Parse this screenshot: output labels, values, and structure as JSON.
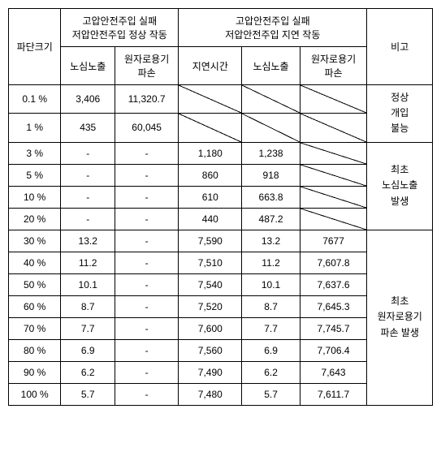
{
  "headers": {
    "col_size": "파단크기",
    "group1": "고압안전주입 실패\n저압안전주입 정상 작동",
    "group2": "고압안전주입 실패\n저압안전주입 지연 작동",
    "note": "비고",
    "sub_core": "노심노출",
    "sub_vessel": "원자로용기\n파손",
    "sub_delay": "지연시간"
  },
  "rows": [
    {
      "size": "0.1 %",
      "a": "3,406",
      "b": "11,320.7",
      "c": "diag",
      "d": "diag",
      "e": "diag"
    },
    {
      "size": "1 %",
      "a": "435",
      "b": "60,045",
      "c": "diag",
      "d": "diag",
      "e": "diag"
    },
    {
      "size": "3 %",
      "a": "-",
      "b": "-",
      "c": "1,180",
      "d": "1,238",
      "e": "diag"
    },
    {
      "size": "5 %",
      "a": "-",
      "b": "-",
      "c": "860",
      "d": "918",
      "e": "diag"
    },
    {
      "size": "10 %",
      "a": "-",
      "b": "-",
      "c": "610",
      "d": "663.8",
      "e": "diag"
    },
    {
      "size": "20 %",
      "a": "-",
      "b": "-",
      "c": "440",
      "d": "487.2",
      "e": "diag"
    },
    {
      "size": "30 %",
      "a": "13.2",
      "b": "-",
      "c": "7,590",
      "d": "13.2",
      "e": "7677"
    },
    {
      "size": "40 %",
      "a": "11.2",
      "b": "-",
      "c": "7,510",
      "d": "11.2",
      "e": "7,607.8"
    },
    {
      "size": "50 %",
      "a": "10.1",
      "b": "-",
      "c": "7,540",
      "d": "10.1",
      "e": "7,637.6"
    },
    {
      "size": "60 %",
      "a": "8.7",
      "b": "-",
      "c": "7,520",
      "d": "8.7",
      "e": "7,645.3"
    },
    {
      "size": "70 %",
      "a": "7.7",
      "b": "-",
      "c": "7,600",
      "d": "7.7",
      "e": "7,745.7"
    },
    {
      "size": "80 %",
      "a": "6.9",
      "b": "-",
      "c": "7,560",
      "d": "6.9",
      "e": "7,706.4"
    },
    {
      "size": "90 %",
      "a": "6.2",
      "b": "-",
      "c": "7,490",
      "d": "6.2",
      "e": "7,643"
    },
    {
      "size": "100 %",
      "a": "5.7",
      "b": "-",
      "c": "7,480",
      "d": "5.7",
      "e": "7,611.7"
    }
  ],
  "notes": {
    "n1": "정상\n개입\n불능",
    "n2": "최초\n노심노출\n발생",
    "n3": "최초\n원자로용기\n파손 발생"
  }
}
